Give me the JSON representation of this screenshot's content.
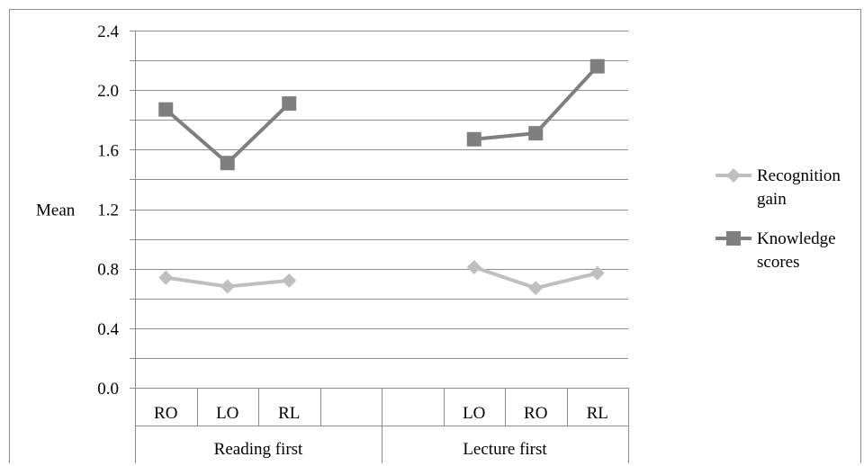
{
  "chart_data": {
    "type": "line",
    "ylabel": "Mean",
    "ylim": [
      0,
      2.4
    ],
    "y_ticks": [
      "0.0",
      "0.4",
      "0.8",
      "1.2",
      "1.6",
      "2.0",
      "2.4"
    ],
    "y_tick_values": [
      0,
      0.4,
      0.8,
      1.2,
      1.6,
      2.0,
      2.4
    ],
    "grid": "horizontal, every 0.2",
    "legend_position": "right",
    "categories": [
      "RO",
      "LO",
      "RL",
      "",
      "",
      "LO",
      "RO",
      "RL"
    ],
    "groups": [
      {
        "label": "Reading first",
        "span": [
          0,
          3
        ]
      },
      {
        "label": "Lecture first",
        "span": [
          4,
          7
        ]
      }
    ],
    "series": [
      {
        "name": "Recognition gain",
        "legend_lines": [
          "Recognition",
          "gain"
        ],
        "marker": "diamond",
        "color": "#bfbfbf",
        "values": [
          0.74,
          0.68,
          0.72,
          null,
          null,
          0.81,
          0.67,
          0.77
        ]
      },
      {
        "name": "Knowledge scores",
        "legend_lines": [
          "Knowledge",
          "scores"
        ],
        "marker": "square",
        "color": "#7f7f7f",
        "values": [
          1.87,
          1.51,
          1.91,
          null,
          null,
          1.67,
          1.71,
          2.16
        ]
      }
    ]
  }
}
